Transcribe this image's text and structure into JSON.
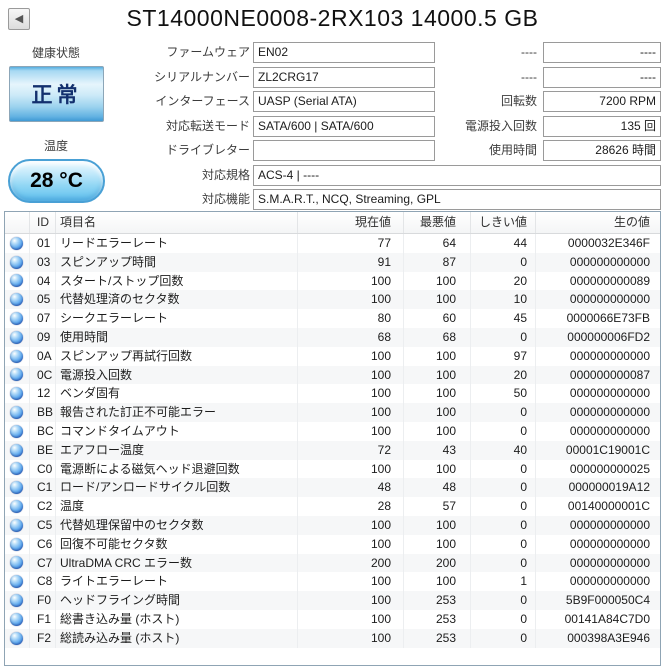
{
  "window": {
    "back_button": "◀",
    "title": "ST14000NE0008-2RX103 14000.5 GB"
  },
  "health": {
    "label": "健康状態",
    "status": "正常",
    "temp_label": "温度",
    "temp_value": "28 °C"
  },
  "drive_info": {
    "fields": [
      {
        "label": "ファームウェア",
        "value": "EN02"
      },
      {
        "label": "シリアルナンバー",
        "value": "ZL2CRG17"
      },
      {
        "label": "インターフェース",
        "value": "UASP (Serial ATA)"
      },
      {
        "label": "対応転送モード",
        "value": "SATA/600 | SATA/600"
      },
      {
        "label": "ドライブレター",
        "value": ""
      },
      {
        "label": "対応規格",
        "value": "ACS-4 | ----"
      },
      {
        "label": "対応機能",
        "value": "S.M.A.R.T., NCQ, Streaming, GPL"
      }
    ],
    "stats": [
      {
        "label": "----",
        "value": "----"
      },
      {
        "label": "----",
        "value": "----"
      },
      {
        "label": "回転数",
        "value": "7200 RPM"
      },
      {
        "label": "電源投入回数",
        "value": "135 回"
      },
      {
        "label": "使用時間",
        "value": "28626 時間"
      }
    ]
  },
  "smart_table": {
    "columns": [
      "ID",
      "項目名",
      "現在値",
      "最悪値",
      "しきい値",
      "生の値"
    ],
    "rows": [
      [
        "01",
        "リードエラーレート",
        "77",
        "64",
        "44",
        "0000032E346F"
      ],
      [
        "03",
        "スピンアップ時間",
        "91",
        "87",
        "0",
        "000000000000"
      ],
      [
        "04",
        "スタート/ストップ回数",
        "100",
        "100",
        "20",
        "000000000089"
      ],
      [
        "05",
        "代替処理済のセクタ数",
        "100",
        "100",
        "10",
        "000000000000"
      ],
      [
        "07",
        "シークエラーレート",
        "80",
        "60",
        "45",
        "0000066E73FB"
      ],
      [
        "09",
        "使用時間",
        "68",
        "68",
        "0",
        "000000006FD2"
      ],
      [
        "0A",
        "スピンアップ再試行回数",
        "100",
        "100",
        "97",
        "000000000000"
      ],
      [
        "0C",
        "電源投入回数",
        "100",
        "100",
        "20",
        "000000000087"
      ],
      [
        "12",
        "ベンダ固有",
        "100",
        "100",
        "50",
        "000000000000"
      ],
      [
        "BB",
        "報告された訂正不可能エラー",
        "100",
        "100",
        "0",
        "000000000000"
      ],
      [
        "BC",
        "コマンドタイムアウト",
        "100",
        "100",
        "0",
        "000000000000"
      ],
      [
        "BE",
        "エアフロー温度",
        "72",
        "43",
        "40",
        "00001C19001C"
      ],
      [
        "C0",
        "電源断による磁気ヘッド退避回数",
        "100",
        "100",
        "0",
        "000000000025"
      ],
      [
        "C1",
        "ロード/アンロードサイクル回数",
        "48",
        "48",
        "0",
        "000000019A12"
      ],
      [
        "C2",
        "温度",
        "28",
        "57",
        "0",
        "00140000001C"
      ],
      [
        "C5",
        "代替処理保留中のセクタ数",
        "100",
        "100",
        "0",
        "000000000000"
      ],
      [
        "C6",
        "回復不可能セクタ数",
        "100",
        "100",
        "0",
        "000000000000"
      ],
      [
        "C7",
        "UltraDMA CRC エラー数",
        "200",
        "200",
        "0",
        "000000000000"
      ],
      [
        "C8",
        "ライトエラーレート",
        "100",
        "100",
        "1",
        "000000000000"
      ],
      [
        "F0",
        "ヘッドフライング時間",
        "100",
        "253",
        "0",
        "5B9F000050C4"
      ],
      [
        "F1",
        "総書き込み量 (ホスト)",
        "100",
        "253",
        "0",
        "00141A84C7D0"
      ],
      [
        "F2",
        "総読み込み量 (ホスト)",
        "100",
        "253",
        "0",
        "000398A3E946"
      ]
    ]
  },
  "colors": {
    "health_button_blue": "#4ea3d8",
    "health_text_navy": "#13306e",
    "temp_pill_border": "#49a0d5",
    "orb_blue": "#2e72d8",
    "row_alt": "#f6f7f8"
  }
}
